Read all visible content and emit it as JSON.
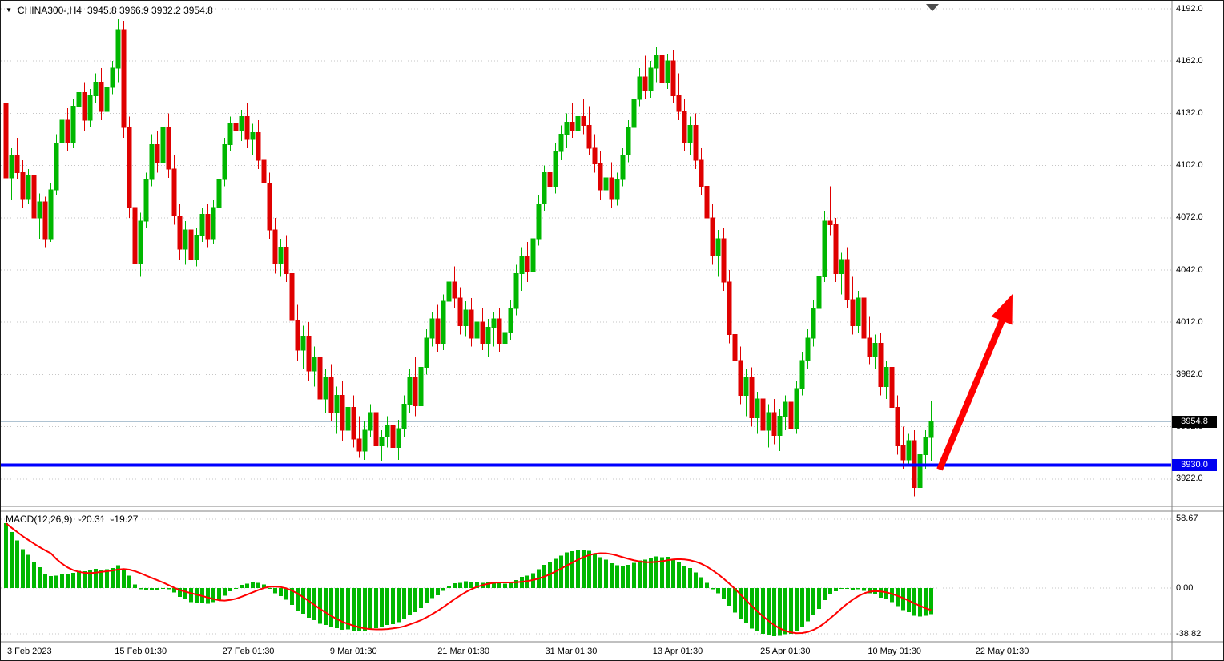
{
  "header": {
    "symbol_period": "CHINA300-,H4",
    "ohlc_text": "3945.8 3966.9 3932.2 3954.8"
  },
  "icons": {
    "symbol_dropdown": "▼"
  },
  "price_axis": {
    "bid_badge": "3954.8",
    "support_badge": "3930.0"
  },
  "time_axis": {
    "labels": [
      "3 Feb 2023",
      "15 Feb 01:30",
      "27 Feb 01:30",
      "9 Mar 01:30",
      "21 Mar 01:30",
      "31 Mar 01:30",
      "13 Apr 01:30",
      "25 Apr 01:30",
      "10 May 01:30",
      "22 May 01:30"
    ]
  },
  "macd_panel": {
    "label": "MACD(12,26,9)",
    "value_main": "-20.31",
    "value_signal": "-19.27"
  },
  "colors": {
    "background": "#FFFFFF",
    "grid": "#C6C6C6",
    "bull": "#00B700",
    "bear": "#DF0000",
    "support_line": "#0000FF",
    "bid_line": "#AFC3D2",
    "arrow": "#FF0000",
    "badge_bid_bg": "#000000",
    "badge_support_bg": "#0000F0",
    "macd_histogram": "#00B700",
    "macd_signal": "#FF0000",
    "separator": "#808080",
    "shift_marker": "#4d4d4d",
    "text": "#000000"
  },
  "chart_data": [
    {
      "type": "candlestick",
      "symbol": "CHINA300-",
      "timeframe": "H4",
      "current_ohlc": {
        "open": 3945.8,
        "high": 3966.9,
        "low": 3932.2,
        "close": 3954.8
      },
      "support_level": 3930.0,
      "ylim": [
        3906,
        4192
      ],
      "price_ticks": [
        "4192.0",
        "4162.0",
        "4132.0",
        "4102.0",
        "4072.0",
        "4042.0",
        "4012.0",
        "3982.0",
        "3952.0",
        "3922.0"
      ],
      "candles": [
        [
          4138,
          4148,
          4085,
          4095
        ],
        [
          4095,
          4112,
          4082,
          4108
        ],
        [
          4108,
          4118,
          4094,
          4098
        ],
        [
          4098,
          4105,
          4078,
          4083
        ],
        [
          4083,
          4100,
          4080,
          4096
        ],
        [
          4096,
          4103,
          4068,
          4072
        ],
        [
          4072,
          4086,
          4060,
          4081
        ],
        [
          4081,
          4084,
          4055,
          4060
        ],
        [
          4060,
          4092,
          4058,
          4088
        ],
        [
          4088,
          4120,
          4085,
          4115
        ],
        [
          4115,
          4132,
          4108,
          4128
        ],
        [
          4128,
          4135,
          4110,
          4115
        ],
        [
          4115,
          4140,
          4112,
          4136
        ],
        [
          4136,
          4148,
          4130,
          4144
        ],
        [
          4144,
          4150,
          4122,
          4128
        ],
        [
          4128,
          4146,
          4124,
          4142
        ],
        [
          4142,
          4155,
          4138,
          4150
        ],
        [
          4150,
          4158,
          4128,
          4133
        ],
        [
          4133,
          4150,
          4130,
          4147
        ],
        [
          4147,
          4162,
          4143,
          4158
        ],
        [
          4158,
          4186,
          4150,
          4180
        ],
        [
          4180,
          4185,
          4118,
          4124
        ],
        [
          4124,
          4130,
          4072,
          4078
        ],
        [
          4078,
          4085,
          4040,
          4046
        ],
        [
          4046,
          4075,
          4038,
          4070
        ],
        [
          4070,
          4098,
          4066,
          4094
        ],
        [
          4094,
          4120,
          4090,
          4114
        ],
        [
          4114,
          4122,
          4098,
          4104
        ],
        [
          4104,
          4128,
          4100,
          4124
        ],
        [
          4124,
          4132,
          4095,
          4100
        ],
        [
          4100,
          4108,
          4068,
          4073
        ],
        [
          4073,
          4080,
          4048,
          4054
        ],
        [
          4054,
          4070,
          4045,
          4065
        ],
        [
          4065,
          4072,
          4042,
          4048
        ],
        [
          4048,
          4066,
          4044,
          4062
        ],
        [
          4062,
          4078,
          4058,
          4074
        ],
        [
          4074,
          4080,
          4055,
          4060
        ],
        [
          4060,
          4082,
          4057,
          4078
        ],
        [
          4078,
          4098,
          4074,
          4094
        ],
        [
          4094,
          4118,
          4090,
          4114
        ],
        [
          4114,
          4130,
          4110,
          4126
        ],
        [
          4126,
          4136,
          4118,
          4122
        ],
        [
          4122,
          4134,
          4116,
          4130
        ],
        [
          4130,
          4138,
          4112,
          4117
        ],
        [
          4117,
          4126,
          4108,
          4121
        ],
        [
          4121,
          4128,
          4100,
          4105
        ],
        [
          4105,
          4112,
          4088,
          4092
        ],
        [
          4092,
          4098,
          4060,
          4065
        ],
        [
          4065,
          4072,
          4040,
          4046
        ],
        [
          4046,
          4060,
          4038,
          4055
        ],
        [
          4055,
          4062,
          4035,
          4040
        ],
        [
          4040,
          4048,
          4008,
          4013
        ],
        [
          4013,
          4022,
          3990,
          3996
        ],
        [
          3996,
          4010,
          3985,
          4004
        ],
        [
          4004,
          4012,
          3978,
          3984
        ],
        [
          3984,
          3998,
          3975,
          3992
        ],
        [
          3992,
          3999,
          3962,
          3968
        ],
        [
          3968,
          3985,
          3960,
          3980
        ],
        [
          3980,
          3988,
          3955,
          3960
        ],
        [
          3960,
          3975,
          3948,
          3970
        ],
        [
          3970,
          3978,
          3944,
          3950
        ],
        [
          3950,
          3968,
          3945,
          3963
        ],
        [
          3963,
          3970,
          3940,
          3945
        ],
        [
          3945,
          3958,
          3934,
          3938
        ],
        [
          3938,
          3955,
          3933,
          3950
        ],
        [
          3950,
          3965,
          3946,
          3960
        ],
        [
          3960,
          3966,
          3936,
          3941
        ],
        [
          3941,
          3950,
          3932,
          3946
        ],
        [
          3946,
          3958,
          3940,
          3953
        ],
        [
          3953,
          3960,
          3935,
          3940
        ],
        [
          3940,
          3956,
          3933,
          3951
        ],
        [
          3951,
          3970,
          3946,
          3965
        ],
        [
          3965,
          3985,
          3960,
          3980
        ],
        [
          3980,
          3992,
          3958,
          3964
        ],
        [
          3964,
          3990,
          3960,
          3986
        ],
        [
          3986,
          4008,
          3982,
          4003
        ],
        [
          4003,
          4018,
          3998,
          4014
        ],
        [
          4014,
          4022,
          3995,
          4000
        ],
        [
          4000,
          4028,
          3996,
          4024
        ],
        [
          4024,
          4040,
          4018,
          4035
        ],
        [
          4035,
          4044,
          4020,
          4026
        ],
        [
          4026,
          4032,
          4005,
          4010
        ],
        [
          4010,
          4024,
          4004,
          4019
        ],
        [
          4019,
          4026,
          3998,
          4003
        ],
        [
          4003,
          4016,
          3994,
          4012
        ],
        [
          4012,
          4020,
          3996,
          4000
        ],
        [
          4000,
          4014,
          3992,
          4009
        ],
        [
          4009,
          4018,
          3998,
          4014
        ],
        [
          4014,
          4020,
          3995,
          4000
        ],
        [
          4000,
          4010,
          3988,
          4006
        ],
        [
          4006,
          4025,
          4002,
          4020
        ],
        [
          4020,
          4045,
          4016,
          4040
        ],
        [
          4040,
          4055,
          4030,
          4050
        ],
        [
          4050,
          4058,
          4035,
          4041
        ],
        [
          4041,
          4065,
          4038,
          4060
        ],
        [
          4060,
          4085,
          4056,
          4080
        ],
        [
          4080,
          4102,
          4076,
          4098
        ],
        [
          4098,
          4108,
          4085,
          4090
        ],
        [
          4090,
          4115,
          4086,
          4110
        ],
        [
          4110,
          4125,
          4105,
          4120
        ],
        [
          4120,
          4132,
          4112,
          4127
        ],
        [
          4127,
          4138,
          4118,
          4122
        ],
        [
          4122,
          4135,
          4116,
          4130
        ],
        [
          4130,
          4140,
          4120,
          4125
        ],
        [
          4125,
          4136,
          4108,
          4112
        ],
        [
          4112,
          4120,
          4098,
          4103
        ],
        [
          4103,
          4110,
          4082,
          4088
        ],
        [
          4088,
          4100,
          4080,
          4095
        ],
        [
          4095,
          4104,
          4078,
          4083
        ],
        [
          4083,
          4098,
          4079,
          4094
        ],
        [
          4094,
          4112,
          4090,
          4108
        ],
        [
          4108,
          4128,
          4104,
          4124
        ],
        [
          4124,
          4145,
          4120,
          4140
        ],
        [
          4140,
          4158,
          4136,
          4153
        ],
        [
          4153,
          4165,
          4140,
          4145
        ],
        [
          4145,
          4162,
          4141,
          4158
        ],
        [
          4158,
          4170,
          4150,
          4165
        ],
        [
          4165,
          4172,
          4145,
          4150
        ],
        [
          4150,
          4166,
          4146,
          4162
        ],
        [
          4162,
          4168,
          4138,
          4142
        ],
        [
          4142,
          4155,
          4128,
          4133
        ],
        [
          4133,
          4140,
          4110,
          4115
        ],
        [
          4115,
          4130,
          4108,
          4125
        ],
        [
          4125,
          4132,
          4100,
          4105
        ],
        [
          4105,
          4112,
          4085,
          4090
        ],
        [
          4090,
          4098,
          4068,
          4072
        ],
        [
          4072,
          4080,
          4045,
          4050
        ],
        [
          4050,
          4065,
          4038,
          4060
        ],
        [
          4060,
          4066,
          4030,
          4035
        ],
        [
          4035,
          4042,
          4000,
          4005
        ],
        [
          4005,
          4015,
          3985,
          3990
        ],
        [
          3990,
          3998,
          3965,
          3970
        ],
        [
          3970,
          3985,
          3958,
          3980
        ],
        [
          3980,
          3986,
          3952,
          3957
        ],
        [
          3957,
          3972,
          3948,
          3968
        ],
        [
          3968,
          3974,
          3944,
          3950
        ],
        [
          3950,
          3965,
          3940,
          3960
        ],
        [
          3960,
          3968,
          3942,
          3947
        ],
        [
          3947,
          3962,
          3938,
          3958
        ],
        [
          3958,
          3970,
          3950,
          3966
        ],
        [
          3966,
          3972,
          3945,
          3951
        ],
        [
          3951,
          3978,
          3948,
          3974
        ],
        [
          3974,
          3995,
          3970,
          3990
        ],
        [
          3990,
          4008,
          3985,
          4003
        ],
        [
          4003,
          4025,
          3998,
          4020
        ],
        [
          4020,
          4042,
          4015,
          4038
        ],
        [
          4038,
          4076,
          4035,
          4070
        ],
        [
          4070,
          4090,
          4062,
          4068
        ],
        [
          4068,
          4072,
          4035,
          4040
        ],
        [
          4040,
          4052,
          4028,
          4048
        ],
        [
          4048,
          4055,
          4020,
          4025
        ],
        [
          4025,
          4038,
          4005,
          4010
        ],
        [
          4010,
          4030,
          4006,
          4026
        ],
        [
          4026,
          4032,
          3998,
          4003
        ],
        [
          4003,
          4015,
          3988,
          3992
        ],
        [
          3992,
          4005,
          3985,
          4000
        ],
        [
          4000,
          4006,
          3970,
          3975
        ],
        [
          3975,
          3990,
          3968,
          3986
        ],
        [
          3986,
          3992,
          3958,
          3963
        ],
        [
          3963,
          3970,
          3936,
          3941
        ],
        [
          3941,
          3952,
          3928,
          3933
        ],
        [
          3933,
          3948,
          3930,
          3944
        ],
        [
          3944,
          3950,
          3912,
          3917
        ],
        [
          3917,
          3940,
          3913,
          3936
        ],
        [
          3936,
          3950,
          3928,
          3945.8
        ],
        [
          3945.8,
          3966.9,
          3932.2,
          3954.8
        ]
      ]
    },
    {
      "type": "bar",
      "name": "MACD(12,26,9)",
      "derived_from": "closes of candlestick series above",
      "params": {
        "fast": 12,
        "slow": 26,
        "signal": 9
      },
      "current": {
        "macd": -20.31,
        "signal": -19.27
      },
      "initial_offset": 65,
      "note": "left edge histogram read off chart at about +55 decaying toward 0",
      "axis_ticks": [
        "58.67",
        "0.00",
        "-38.82"
      ],
      "ylim": [
        -45,
        62
      ]
    }
  ]
}
